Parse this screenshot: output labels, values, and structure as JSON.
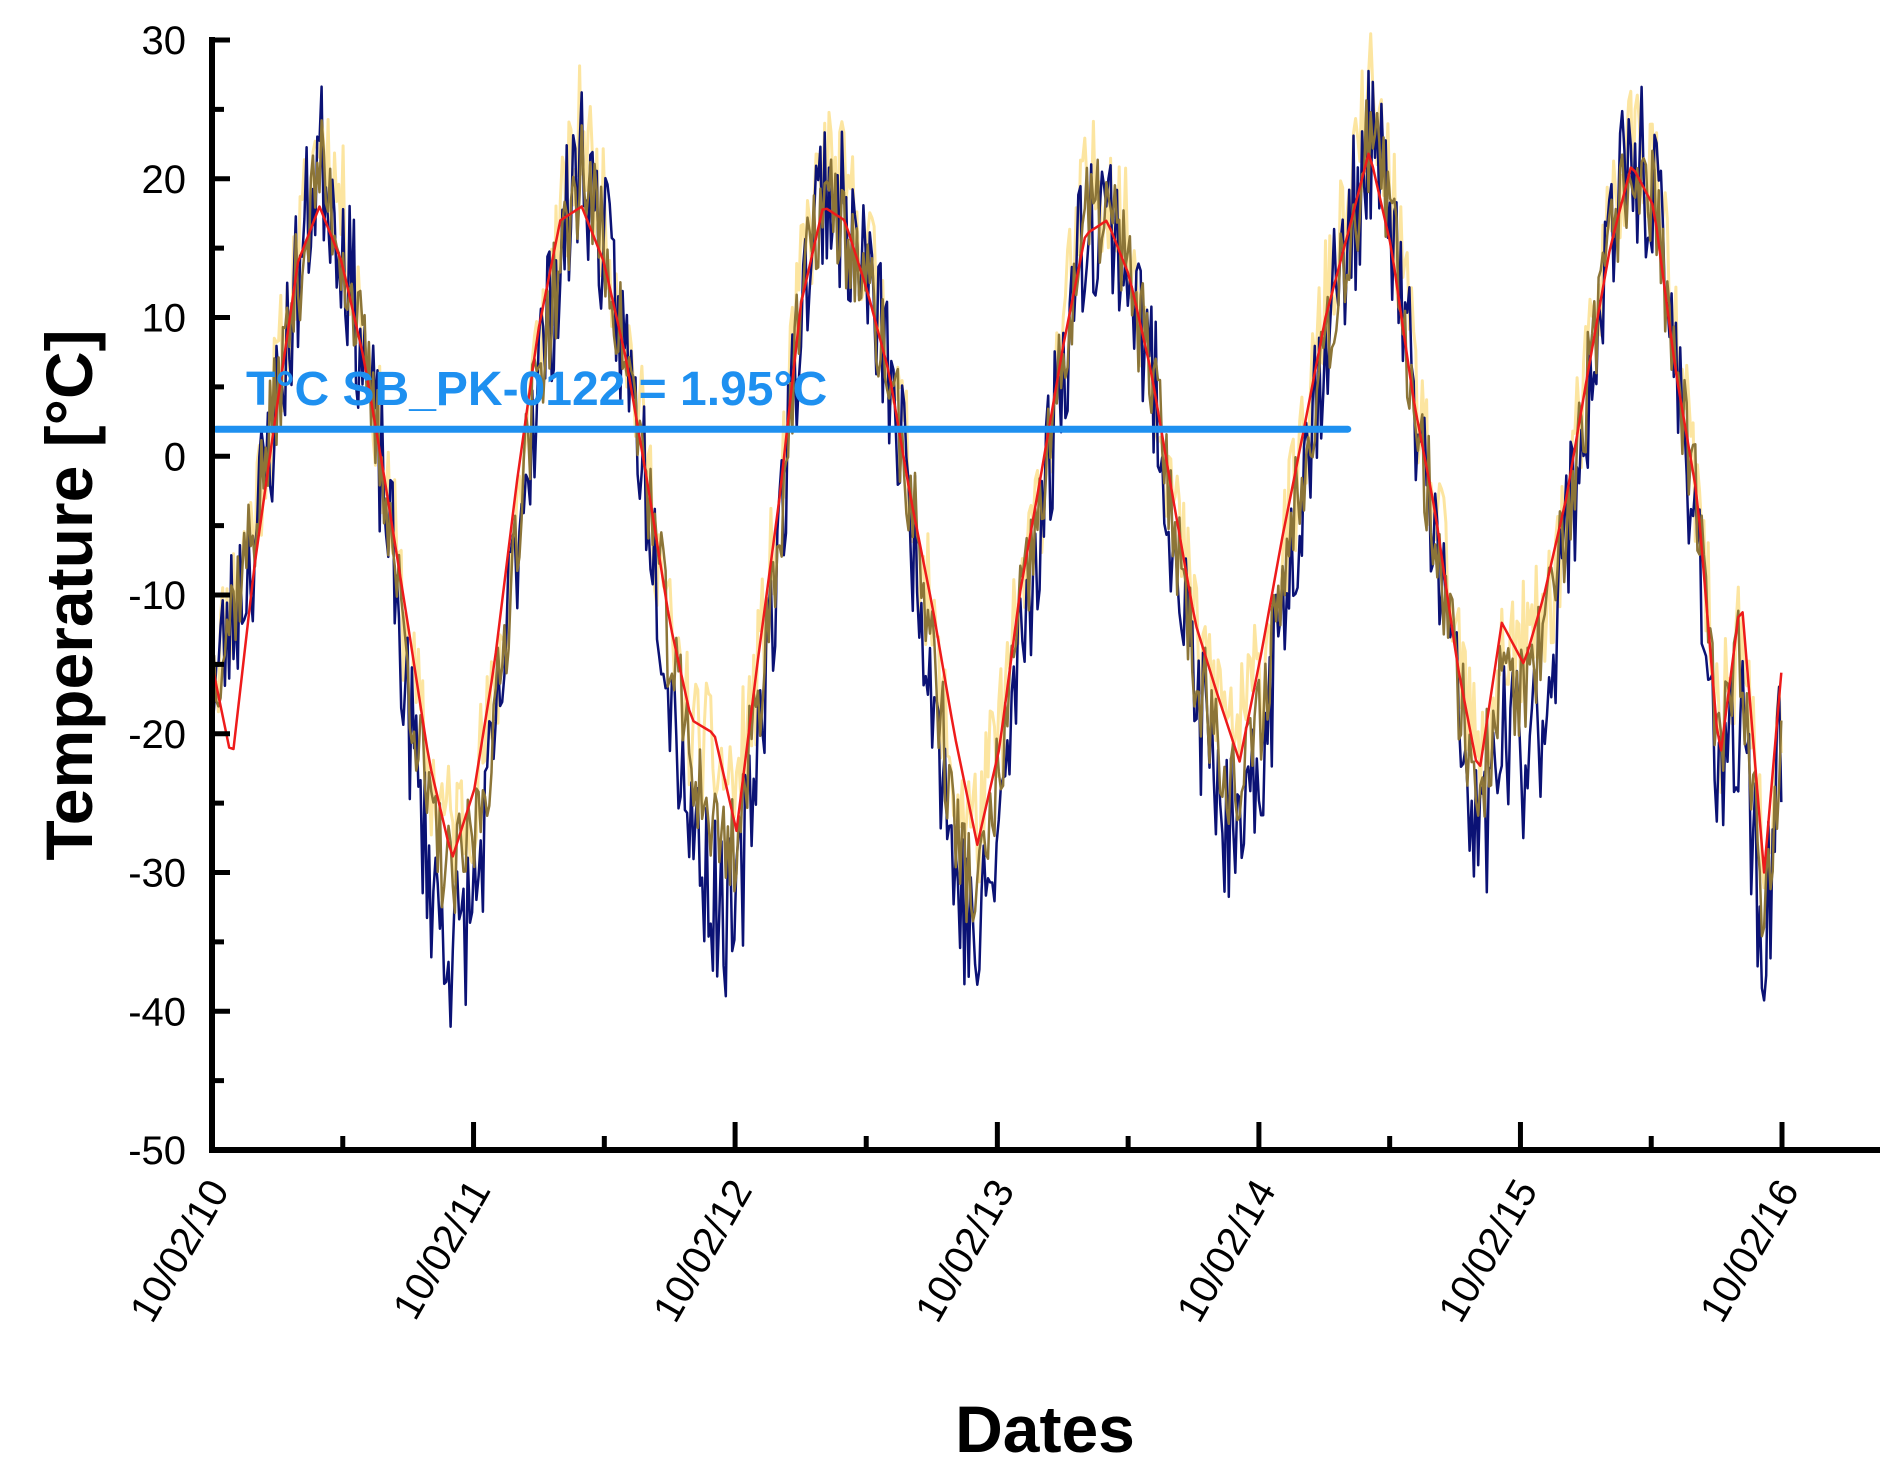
{
  "chart_data": {
    "type": "line",
    "title": "",
    "xlabel": "Dates",
    "ylabel": "Temperature [°C]",
    "xlim": [
      "10/02/10",
      "10/02/16"
    ],
    "ylim": [
      -50,
      30
    ],
    "yticks": [
      30,
      20,
      10,
      0,
      -10,
      -20,
      -30,
      -40,
      -50
    ],
    "xticks": [
      "10/02/10",
      "10/02/11",
      "10/02/12",
      "10/02/13",
      "10/02/14",
      "10/02/15",
      "10/02/16"
    ],
    "grid": false,
    "legend": "none",
    "annotation": {
      "text": "T°C SB_PK-0122 = 1.95°C",
      "value": 1.95,
      "x_end": "14/06/14",
      "color": "#1e90f0"
    },
    "series": [
      {
        "role": "envelope",
        "color": "#fce5a0",
        "points": [
          [
            "10/02/10",
            -16
          ],
          [
            "10/04/10",
            -4
          ],
          [
            "10/06/10",
            14
          ],
          [
            "10/07/10",
            24
          ],
          [
            "10/08/10",
            18
          ],
          [
            "10/09/10",
            9
          ],
          [
            "10/10/10",
            -1
          ],
          [
            "10/11/10",
            -14
          ],
          [
            "10/12/10",
            -23
          ],
          [
            "11/01/11",
            -27
          ],
          [
            "11/02/11",
            -24
          ],
          [
            "11/03/11",
            -18
          ],
          [
            "11/04/11",
            -4
          ],
          [
            "11/05/11",
            8
          ],
          [
            "11/07/11",
            24
          ],
          [
            "11/08/11",
            17
          ],
          [
            "11/09/11",
            9
          ],
          [
            "11/10/11",
            -1
          ],
          [
            "11/11/11",
            -13
          ],
          [
            "11/12/11",
            -20
          ],
          [
            "12/01/12",
            -22
          ],
          [
            "12/02/12",
            -24
          ],
          [
            "12/03/12",
            -16
          ],
          [
            "12/04/12",
            -4
          ],
          [
            "12/05/12",
            13
          ],
          [
            "12/06/12",
            21
          ],
          [
            "12/07/12",
            19
          ],
          [
            "12/08/12",
            15
          ],
          [
            "12/09/12",
            8
          ],
          [
            "12/10/12",
            -2
          ],
          [
            "12/11/12",
            -13
          ],
          [
            "12/12/12",
            -24
          ],
          [
            "13/01/13",
            -27
          ],
          [
            "13/02/13",
            -20
          ],
          [
            "13/03/13",
            -11
          ],
          [
            "13/04/13",
            -2
          ],
          [
            "13/05/13",
            9
          ],
          [
            "13/06/13",
            19
          ],
          [
            "13/07/13",
            20
          ],
          [
            "13/08/13",
            15
          ],
          [
            "13/09/13",
            8
          ],
          [
            "13/10/13",
            -3
          ],
          [
            "13/11/13",
            -13
          ],
          [
            "13/12/13",
            -17
          ],
          [
            "14/01/14",
            -20
          ],
          [
            "14/02/14",
            -15
          ],
          [
            "14/03/14",
            -8
          ],
          [
            "14/04/14",
            1
          ],
          [
            "14/05/14",
            11
          ],
          [
            "14/06/14",
            17
          ],
          [
            "14/07/14",
            26
          ],
          [
            "14/08/14",
            19
          ],
          [
            "14/09/14",
            6
          ],
          [
            "14/10/14",
            -4
          ],
          [
            "14/11/14",
            -14
          ],
          [
            "14/12/14",
            -23
          ],
          [
            "15/01/15",
            -14
          ],
          [
            "15/02/15",
            -14
          ],
          [
            "15/03/15",
            -12
          ],
          [
            "15/04/15",
            -4
          ],
          [
            "15/05/15",
            6
          ],
          [
            "15/06/15",
            17
          ],
          [
            "15/07/15",
            23
          ],
          [
            "15/08/15",
            21
          ],
          [
            "15/09/15",
            8
          ],
          [
            "15/10/15",
            -3
          ],
          [
            "15/11/15",
            -20
          ],
          [
            "15/12/15",
            -12
          ],
          [
            "16/01/16",
            -30
          ],
          [
            "10/02/16",
            -18
          ]
        ]
      },
      {
        "role": "daily",
        "color": "#0b1275",
        "points": [
          [
            "10/02/10",
            -17
          ],
          [
            "10/04/10",
            -6
          ],
          [
            "10/06/10",
            13
          ],
          [
            "10/07/10",
            22
          ],
          [
            "10/08/10",
            16
          ],
          [
            "10/09/10",
            7
          ],
          [
            "10/10/10",
            -3
          ],
          [
            "10/11/10",
            -18
          ],
          [
            "10/12/10",
            -30
          ],
          [
            "11/01/11",
            -36
          ],
          [
            "11/02/11",
            -32
          ],
          [
            "11/03/11",
            -22
          ],
          [
            "11/04/11",
            -6
          ],
          [
            "11/05/11",
            6
          ],
          [
            "11/07/11",
            22
          ],
          [
            "11/08/11",
            15
          ],
          [
            "11/09/11",
            7
          ],
          [
            "11/10/11",
            -2
          ],
          [
            "11/11/11",
            -16
          ],
          [
            "11/12/11",
            -26
          ],
          [
            "12/01/12",
            -32
          ],
          [
            "12/02/12",
            -34
          ],
          [
            "12/03/12",
            -20
          ],
          [
            "12/04/12",
            -6
          ],
          [
            "12/05/12",
            11
          ],
          [
            "12/06/12",
            20
          ],
          [
            "12/07/12",
            17
          ],
          [
            "12/08/12",
            13
          ],
          [
            "12/09/12",
            6
          ],
          [
            "12/10/12",
            -4
          ],
          [
            "12/11/12",
            -16
          ],
          [
            "12/12/12",
            -30
          ],
          [
            "13/01/13",
            -36
          ],
          [
            "13/02/13",
            -27
          ],
          [
            "13/03/13",
            -14
          ],
          [
            "13/04/13",
            -4
          ],
          [
            "13/05/13",
            7
          ],
          [
            "13/06/13",
            17
          ],
          [
            "13/07/13",
            18
          ],
          [
            "13/08/13",
            13
          ],
          [
            "13/09/13",
            6
          ],
          [
            "13/10/13",
            -5
          ],
          [
            "13/11/13",
            -17
          ],
          [
            "13/12/13",
            -24
          ],
          [
            "14/01/14",
            -30
          ],
          [
            "14/02/14",
            -22
          ],
          [
            "14/03/14",
            -11
          ],
          [
            "14/04/14",
            -1
          ],
          [
            "14/05/14",
            9
          ],
          [
            "14/06/14",
            15
          ],
          [
            "14/07/14",
            23
          ],
          [
            "14/08/14",
            17
          ],
          [
            "14/09/14",
            4
          ],
          [
            "14/10/14",
            -6
          ],
          [
            "14/11/14",
            -18
          ],
          [
            "14/12/14",
            -29
          ],
          [
            "15/01/15",
            -20
          ],
          [
            "15/02/15",
            -22
          ],
          [
            "15/03/15",
            -18
          ],
          [
            "15/04/15",
            -6
          ],
          [
            "15/05/15",
            4
          ],
          [
            "15/06/15",
            15
          ],
          [
            "15/07/15",
            22
          ],
          [
            "15/08/15",
            19
          ],
          [
            "15/09/15",
            6
          ],
          [
            "15/10/15",
            -5
          ],
          [
            "15/11/15",
            -26
          ],
          [
            "15/12/15",
            -18
          ],
          [
            "16/01/16",
            -36
          ],
          [
            "10/02/16",
            -20
          ]
        ]
      },
      {
        "role": "mid",
        "color": "#8c7538",
        "points": [
          [
            "10/02/10",
            -16
          ],
          [
            "10/04/10",
            -5
          ],
          [
            "10/06/10",
            13
          ],
          [
            "10/07/10",
            21
          ],
          [
            "10/08/10",
            15
          ],
          [
            "10/09/10",
            7
          ],
          [
            "10/10/10",
            -2
          ],
          [
            "10/11/10",
            -15
          ],
          [
            "10/12/10",
            -26
          ],
          [
            "11/01/11",
            -31
          ],
          [
            "11/02/11",
            -27
          ],
          [
            "11/03/11",
            -20
          ],
          [
            "11/04/11",
            -5
          ],
          [
            "11/05/11",
            6
          ],
          [
            "11/07/11",
            21
          ],
          [
            "11/08/11",
            15
          ],
          [
            "11/09/11",
            7
          ],
          [
            "11/10/11",
            -2
          ],
          [
            "11/11/11",
            -14
          ],
          [
            "11/12/11",
            -22
          ],
          [
            "12/01/12",
            -27
          ],
          [
            "12/02/12",
            -28
          ],
          [
            "12/03/12",
            -18
          ],
          [
            "12/04/12",
            -5
          ],
          [
            "12/05/12",
            11
          ],
          [
            "12/06/12",
            19
          ],
          [
            "12/07/12",
            16
          ],
          [
            "12/08/12",
            12
          ],
          [
            "12/09/12",
            6
          ],
          [
            "12/10/12",
            -3
          ],
          [
            "12/11/12",
            -14
          ],
          [
            "12/12/12",
            -27
          ],
          [
            "13/01/13",
            -32
          ],
          [
            "13/02/13",
            -23
          ],
          [
            "13/03/13",
            -12
          ],
          [
            "13/04/13",
            -3
          ],
          [
            "13/05/13",
            7
          ],
          [
            "13/06/13",
            17
          ],
          [
            "13/07/13",
            18
          ],
          [
            "13/08/13",
            13
          ],
          [
            "13/09/13",
            6
          ],
          [
            "13/10/13",
            -4
          ],
          [
            "13/11/13",
            -15
          ],
          [
            "13/12/13",
            -20
          ],
          [
            "14/01/14",
            -25
          ],
          [
            "14/02/14",
            -18
          ],
          [
            "14/03/14",
            -9
          ],
          [
            "14/04/14",
            0
          ],
          [
            "14/05/14",
            9
          ],
          [
            "14/06/14",
            15
          ],
          [
            "14/07/14",
            23
          ],
          [
            "14/08/14",
            17
          ],
          [
            "14/09/14",
            4
          ],
          [
            "14/10/14",
            -5
          ],
          [
            "14/11/14",
            -16
          ],
          [
            "14/12/14",
            -25
          ],
          [
            "15/01/15",
            -16
          ],
          [
            "15/02/15",
            -17
          ],
          [
            "15/03/15",
            -14
          ],
          [
            "15/04/15",
            -5
          ],
          [
            "15/05/15",
            5
          ],
          [
            "15/06/15",
            15
          ],
          [
            "15/07/15",
            21
          ],
          [
            "15/08/15",
            19
          ],
          [
            "15/09/15",
            6
          ],
          [
            "15/10/15",
            -4
          ],
          [
            "15/11/15",
            -22
          ],
          [
            "15/12/15",
            -14
          ],
          [
            "16/01/16",
            -33
          ],
          [
            "10/02/16",
            -19
          ]
        ]
      },
      {
        "role": "smoothed",
        "color": "#ee1b1b",
        "points": [
          [
            "10/02/10",
            -15
          ],
          [
            "10/03/10",
            -22
          ],
          [
            "10/04/10",
            -8
          ],
          [
            "10/05/10",
            3
          ],
          [
            "10/06/10",
            14
          ],
          [
            "10/07/10",
            18
          ],
          [
            "10/08/10",
            14
          ],
          [
            "10/09/10",
            7
          ],
          [
            "10/10/10",
            -2
          ],
          [
            "10/11/10",
            -12
          ],
          [
            "10/12/10",
            -22
          ],
          [
            "11/01/11",
            -29
          ],
          [
            "11/02/11",
            -24
          ],
          [
            "11/03/11",
            -15
          ],
          [
            "11/04/11",
            -2
          ],
          [
            "11/05/11",
            9
          ],
          [
            "11/06/11",
            17
          ],
          [
            "11/07/11",
            18
          ],
          [
            "11/08/11",
            14
          ],
          [
            "11/09/11",
            7
          ],
          [
            "11/10/11",
            -2
          ],
          [
            "11/11/11",
            -12
          ],
          [
            "11/12/11",
            -19
          ],
          [
            "12/01/12",
            -20
          ],
          [
            "12/02/12",
            -27
          ],
          [
            "12/03/12",
            -15
          ],
          [
            "12/04/12",
            -3
          ],
          [
            "12/05/12",
            11
          ],
          [
            "12/06/12",
            18
          ],
          [
            "12/07/12",
            17
          ],
          [
            "12/08/12",
            12
          ],
          [
            "12/09/12",
            6
          ],
          [
            "12/10/12",
            -3
          ],
          [
            "12/11/12",
            -11
          ],
          [
            "12/12/12",
            -20
          ],
          [
            "13/01/13",
            -28
          ],
          [
            "13/02/13",
            -21
          ],
          [
            "13/03/13",
            -10
          ],
          [
            "13/04/13",
            -1
          ],
          [
            "13/05/13",
            8
          ],
          [
            "13/06/13",
            16
          ],
          [
            "13/07/13",
            17
          ],
          [
            "13/08/13",
            13
          ],
          [
            "13/09/13",
            6
          ],
          [
            "13/10/13",
            -3
          ],
          [
            "13/11/13",
            -12
          ],
          [
            "13/12/13",
            -17
          ],
          [
            "14/01/14",
            -22
          ],
          [
            "14/02/14",
            -14
          ],
          [
            "14/03/14",
            -6
          ],
          [
            "14/04/14",
            2
          ],
          [
            "14/05/14",
            10
          ],
          [
            "14/06/14",
            16
          ],
          [
            "14/07/14",
            22
          ],
          [
            "14/08/14",
            15
          ],
          [
            "14/09/14",
            4
          ],
          [
            "14/10/14",
            -4
          ],
          [
            "14/11/14",
            -15
          ],
          [
            "14/12/14",
            -23
          ],
          [
            "15/01/15",
            -12
          ],
          [
            "15/02/15",
            -15
          ],
          [
            "15/03/15",
            -10
          ],
          [
            "15/04/15",
            -3
          ],
          [
            "15/05/15",
            6
          ],
          [
            "15/06/15",
            15
          ],
          [
            "15/07/15",
            21
          ],
          [
            "15/08/15",
            18
          ],
          [
            "15/09/15",
            6
          ],
          [
            "15/10/15",
            -3
          ],
          [
            "15/11/15",
            -22
          ],
          [
            "15/12/15",
            -10
          ],
          [
            "16/01/16",
            -30
          ],
          [
            "10/02/16",
            -15
          ]
        ]
      }
    ]
  }
}
